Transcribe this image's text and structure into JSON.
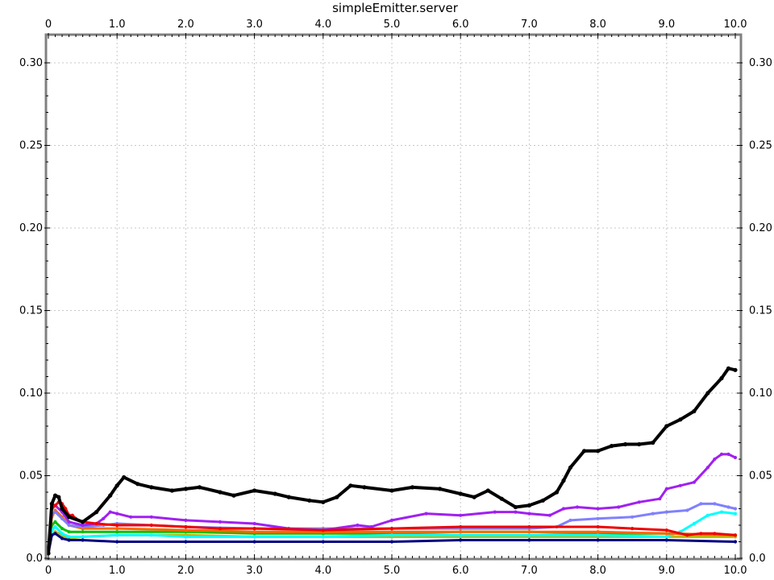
{
  "chart_data": {
    "type": "line",
    "title": "simpleEmitter.server",
    "xlim": [
      0,
      10
    ],
    "ylim": [
      0,
      0.3
    ],
    "grid": true,
    "x_ticks": [
      "0",
      "1.0",
      "2.0",
      "3.0",
      "4.0",
      "5.0",
      "6.0",
      "7.0",
      "8.0",
      "9.0",
      "10.0"
    ],
    "y_ticks": [
      "0.0",
      "0.05",
      "0.10",
      "0.15",
      "0.20",
      "0.25",
      "0.30"
    ],
    "series": [
      {
        "color": "#000000",
        "width": 4,
        "x": [
          0,
          0.05,
          0.1,
          0.15,
          0.2,
          0.3,
          0.5,
          0.7,
          0.9,
          1.0,
          1.1,
          1.3,
          1.5,
          1.8,
          2.0,
          2.2,
          2.5,
          2.7,
          3.0,
          3.3,
          3.5,
          3.8,
          4.0,
          4.2,
          4.4,
          4.6,
          5.0,
          5.3,
          5.7,
          6.0,
          6.2,
          6.4,
          6.6,
          6.8,
          7.0,
          7.2,
          7.4,
          7.5,
          7.6,
          7.8,
          8.0,
          8.2,
          8.4,
          8.6,
          8.8,
          9.0,
          9.2,
          9.4,
          9.6,
          9.8,
          9.9,
          10.0
        ],
        "y": [
          0.003,
          0.033,
          0.038,
          0.037,
          0.03,
          0.025,
          0.022,
          0.028,
          0.038,
          0.044,
          0.049,
          0.045,
          0.043,
          0.041,
          0.042,
          0.043,
          0.04,
          0.038,
          0.041,
          0.039,
          0.037,
          0.035,
          0.034,
          0.037,
          0.044,
          0.043,
          0.041,
          0.043,
          0.042,
          0.039,
          0.037,
          0.041,
          0.036,
          0.031,
          0.032,
          0.035,
          0.04,
          0.047,
          0.055,
          0.065,
          0.065,
          0.068,
          0.069,
          0.069,
          0.07,
          0.08,
          0.084,
          0.089,
          0.1,
          0.109,
          0.115,
          0.114
        ]
      },
      {
        "color": "#a020f0",
        "width": 3,
        "x": [
          0,
          0.05,
          0.1,
          0.2,
          0.3,
          0.5,
          0.7,
          0.8,
          0.9,
          1.0,
          1.2,
          1.5,
          2.0,
          2.5,
          3.0,
          3.5,
          4.0,
          4.5,
          4.7,
          5.0,
          5.5,
          6.0,
          6.5,
          6.8,
          7.0,
          7.3,
          7.5,
          7.7,
          8.0,
          8.3,
          8.6,
          8.9,
          9.0,
          9.2,
          9.4,
          9.6,
          9.7,
          9.8,
          9.9,
          10.0
        ],
        "y": [
          0.005,
          0.03,
          0.032,
          0.028,
          0.022,
          0.02,
          0.021,
          0.024,
          0.028,
          0.027,
          0.025,
          0.025,
          0.023,
          0.022,
          0.021,
          0.018,
          0.017,
          0.02,
          0.019,
          0.023,
          0.027,
          0.026,
          0.028,
          0.028,
          0.027,
          0.026,
          0.03,
          0.031,
          0.03,
          0.031,
          0.034,
          0.036,
          0.042,
          0.044,
          0.046,
          0.055,
          0.06,
          0.063,
          0.063,
          0.061
        ]
      },
      {
        "color": "#8080ff",
        "width": 3,
        "x": [
          0,
          0.05,
          0.1,
          0.2,
          0.3,
          0.5,
          0.8,
          1.0,
          1.5,
          2.0,
          3.0,
          4.0,
          5.0,
          6.0,
          7.0,
          7.4,
          7.6,
          8.0,
          8.5,
          8.8,
          9.0,
          9.3,
          9.5,
          9.7,
          9.9,
          10.0
        ],
        "y": [
          0.005,
          0.027,
          0.028,
          0.024,
          0.02,
          0.019,
          0.02,
          0.021,
          0.02,
          0.019,
          0.018,
          0.018,
          0.018,
          0.018,
          0.018,
          0.019,
          0.023,
          0.024,
          0.025,
          0.027,
          0.028,
          0.029,
          0.033,
          0.033,
          0.031,
          0.03
        ]
      },
      {
        "color": "#00ffff",
        "width": 3,
        "x": [
          0,
          0.05,
          0.1,
          0.2,
          0.3,
          0.5,
          1.0,
          1.5,
          2.0,
          3.0,
          4.0,
          5.0,
          6.0,
          7.0,
          8.0,
          9.0,
          9.2,
          9.4,
          9.6,
          9.8,
          10.0
        ],
        "y": [
          0.004,
          0.017,
          0.019,
          0.015,
          0.013,
          0.013,
          0.014,
          0.014,
          0.013,
          0.013,
          0.013,
          0.014,
          0.014,
          0.014,
          0.014,
          0.013,
          0.016,
          0.021,
          0.026,
          0.028,
          0.027
        ]
      },
      {
        "color": "#00c000",
        "width": 3,
        "x": [
          0,
          0.05,
          0.1,
          0.2,
          0.3,
          0.5,
          1.0,
          2.0,
          3.0,
          4.0,
          5.0,
          6.0,
          7.0,
          8.0,
          9.0,
          10.0
        ],
        "y": [
          0.004,
          0.02,
          0.022,
          0.018,
          0.016,
          0.016,
          0.016,
          0.016,
          0.015,
          0.015,
          0.015,
          0.016,
          0.016,
          0.015,
          0.015,
          0.014
        ]
      },
      {
        "color": "#b8b800",
        "width": 3,
        "x": [
          0,
          0.05,
          0.1,
          0.2,
          0.3,
          0.5,
          1.0,
          2.0,
          3.0,
          4.0,
          5.0,
          6.0,
          7.0,
          8.0,
          9.0,
          10.0
        ],
        "y": [
          0.003,
          0.014,
          0.016,
          0.014,
          0.012,
          0.013,
          0.014,
          0.014,
          0.013,
          0.013,
          0.013,
          0.013,
          0.013,
          0.013,
          0.013,
          0.013
        ]
      },
      {
        "color": "#ff6600",
        "width": 3,
        "x": [
          0,
          0.05,
          0.1,
          0.2,
          0.3,
          0.5,
          1.0,
          2.0,
          3.0,
          4.0,
          5.0,
          6.0,
          7.0,
          8.0,
          9.0,
          10.0
        ],
        "y": [
          0.004,
          0.025,
          0.029,
          0.025,
          0.02,
          0.018,
          0.018,
          0.017,
          0.016,
          0.016,
          0.016,
          0.016,
          0.016,
          0.016,
          0.015,
          0.014
        ]
      },
      {
        "color": "#ee0000",
        "width": 3,
        "x": [
          0,
          0.05,
          0.1,
          0.15,
          0.2,
          0.25,
          0.3,
          0.35,
          0.4,
          0.5,
          0.7,
          1.0,
          1.5,
          2.0,
          2.5,
          3.0,
          4.0,
          5.0,
          6.0,
          7.0,
          8.0,
          8.5,
          9.0,
          9.3,
          9.5,
          9.7,
          10.0
        ],
        "y": [
          0.006,
          0.03,
          0.032,
          0.034,
          0.033,
          0.03,
          0.026,
          0.026,
          0.024,
          0.022,
          0.021,
          0.02,
          0.02,
          0.019,
          0.018,
          0.018,
          0.017,
          0.018,
          0.019,
          0.019,
          0.019,
          0.018,
          0.017,
          0.014,
          0.015,
          0.015,
          0.014
        ]
      },
      {
        "color": "#000080",
        "width": 3,
        "x": [
          0,
          0.05,
          0.1,
          0.2,
          0.3,
          0.5,
          1.0,
          2.0,
          3.0,
          4.0,
          5.0,
          6.0,
          7.0,
          8.0,
          9.0,
          10.0
        ],
        "y": [
          0.003,
          0.014,
          0.015,
          0.012,
          0.011,
          0.011,
          0.01,
          0.01,
          0.01,
          0.01,
          0.01,
          0.011,
          0.011,
          0.011,
          0.011,
          0.01
        ]
      }
    ]
  }
}
